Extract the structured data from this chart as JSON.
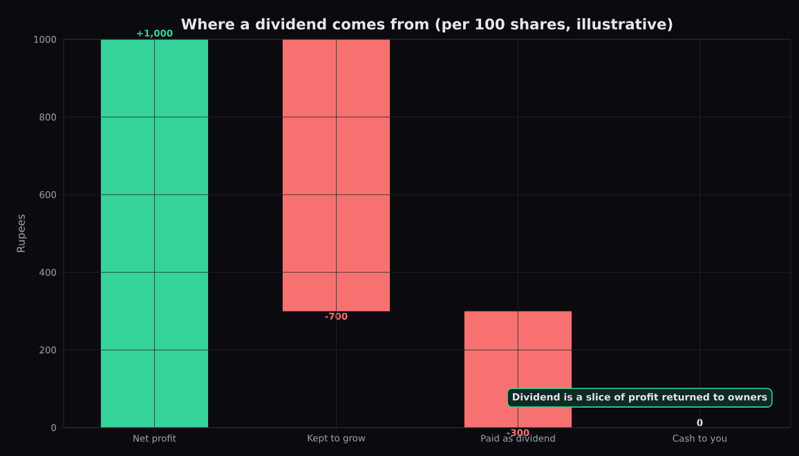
{
  "chart_data": {
    "type": "bar",
    "title": "Where a dividend comes from (per 100 shares, illustrative)",
    "ylabel": "Rupees",
    "categories": [
      "Net profit",
      "Kept to grow",
      "Paid as dividend",
      "Cash to you"
    ],
    "values": [
      1000,
      -700,
      -300,
      0
    ],
    "base": [
      null,
      1000,
      300,
      null
    ],
    "colors": [
      "#34d399",
      "#f87171",
      "#f87171",
      "#e5e7eb"
    ],
    "value_labels": [
      "+1,000",
      "-700",
      "-300",
      "0"
    ],
    "ylim": [
      0,
      1000
    ],
    "yticks": [
      0,
      200,
      400,
      600,
      800,
      1000
    ],
    "grid": true,
    "annotations": [
      "Dividend is a slice of profit returned to owners"
    ]
  }
}
